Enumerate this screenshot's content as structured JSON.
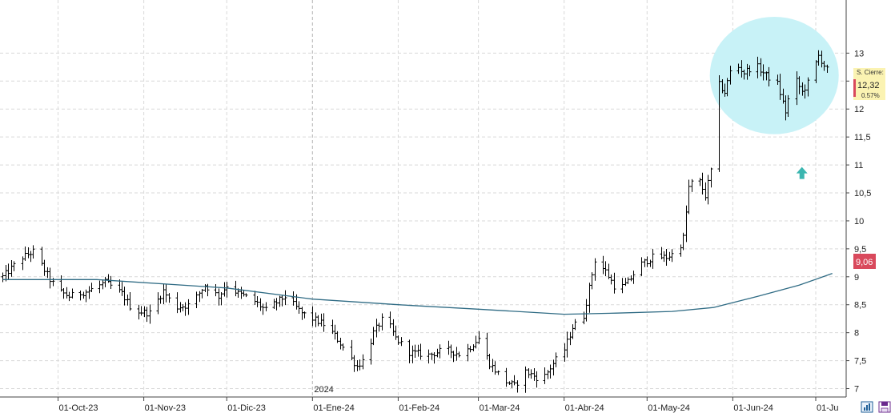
{
  "chart_data": {
    "type": "ohlc",
    "y_axis": {
      "side": "right",
      "ylim": [
        6.85,
        13.95
      ],
      "ticks": [
        "13",
        "12,5",
        "12",
        "11,5",
        "11",
        "10,5",
        "10",
        "9,5",
        "9",
        "8,5",
        "8",
        "7,5",
        "7"
      ]
    },
    "x_axis": {
      "ticks": [
        {
          "label": "01-Oct-23",
          "date": "2023-10-01"
        },
        {
          "label": "01-Nov-23",
          "date": "2023-11-01"
        },
        {
          "label": "01-Dic-23",
          "date": "2023-12-01"
        },
        {
          "label": "01-Ene-24",
          "date": "2024-01-01"
        },
        {
          "label": "01-Feb-24",
          "date": "2024-02-01"
        },
        {
          "label": "01-Mar-24",
          "date": "2024-03-01"
        },
        {
          "label": "01-Abr-24",
          "date": "2024-04-01"
        },
        {
          "label": "01-May-24",
          "date": "2024-05-01"
        },
        {
          "label": "01-Jun-24",
          "date": "2024-06-01"
        },
        {
          "label": "01-Ju",
          "date": "2024-07-01"
        }
      ],
      "year_marker": {
        "label": "2024",
        "date": "2024-01-01"
      },
      "range": [
        "2023-09-10",
        "2024-07-12"
      ]
    },
    "grid": true,
    "series": [
      {
        "kind": "ohlc-bars",
        "color": "#000000",
        "anchors": [
          [
            "2023-09-11",
            9.0
          ],
          [
            "2023-09-18",
            9.35
          ],
          [
            "2023-09-22",
            9.45
          ],
          [
            "2023-09-28",
            8.95
          ],
          [
            "2023-10-01",
            8.75
          ],
          [
            "2023-10-05",
            8.65
          ],
          [
            "2023-10-12",
            8.75
          ],
          [
            "2023-10-18",
            8.9
          ],
          [
            "2023-10-24",
            8.7
          ],
          [
            "2023-10-28",
            8.4
          ],
          [
            "2023-11-03",
            8.35
          ],
          [
            "2023-11-08",
            8.75
          ],
          [
            "2023-11-12",
            8.45
          ],
          [
            "2023-11-18",
            8.5
          ],
          [
            "2023-11-23",
            8.85
          ],
          [
            "2023-11-28",
            8.65
          ],
          [
            "2023-12-01",
            8.85
          ],
          [
            "2023-12-05",
            8.7
          ],
          [
            "2023-12-10",
            8.6
          ],
          [
            "2023-12-15",
            8.4
          ],
          [
            "2023-12-22",
            8.65
          ],
          [
            "2023-12-28",
            8.35
          ],
          [
            "2024-01-05",
            8.15
          ],
          [
            "2024-01-09",
            7.95
          ],
          [
            "2024-01-14",
            7.6
          ],
          [
            "2024-01-17",
            7.4
          ],
          [
            "2024-01-20",
            7.55
          ],
          [
            "2024-01-23",
            8.0
          ],
          [
            "2024-01-27",
            8.3
          ],
          [
            "2024-01-31",
            7.9
          ],
          [
            "2024-02-05",
            7.65
          ],
          [
            "2024-02-12",
            7.6
          ],
          [
            "2024-02-18",
            7.7
          ],
          [
            "2024-02-24",
            7.6
          ],
          [
            "2024-03-01",
            7.9
          ],
          [
            "2024-03-05",
            7.45
          ],
          [
            "2024-03-10",
            7.15
          ],
          [
            "2024-03-14",
            7.05
          ],
          [
            "2024-03-18",
            7.3
          ],
          [
            "2024-03-24",
            7.15
          ],
          [
            "2024-03-28",
            7.45
          ],
          [
            "2024-04-01",
            7.7
          ],
          [
            "2024-04-04",
            8.1
          ],
          [
            "2024-04-08",
            8.3
          ],
          [
            "2024-04-12",
            9.3
          ],
          [
            "2024-04-16",
            9.1
          ],
          [
            "2024-04-20",
            8.75
          ],
          [
            "2024-04-24",
            8.9
          ],
          [
            "2024-04-28",
            9.2
          ],
          [
            "2024-05-03",
            9.35
          ],
          [
            "2024-05-08",
            9.35
          ],
          [
            "2024-05-12",
            9.45
          ],
          [
            "2024-05-14",
            9.7
          ],
          [
            "2024-05-16",
            10.6
          ],
          [
            "2024-05-18",
            10.75
          ],
          [
            "2024-05-20",
            10.7
          ],
          [
            "2024-05-22",
            10.45
          ],
          [
            "2024-05-24",
            10.9
          ],
          [
            "2024-05-26",
            12.5
          ],
          [
            "2024-05-29",
            12.3
          ],
          [
            "2024-06-01",
            12.85
          ],
          [
            "2024-06-05",
            12.65
          ],
          [
            "2024-06-09",
            12.8
          ],
          [
            "2024-06-13",
            12.6
          ],
          [
            "2024-06-17",
            12.45
          ],
          [
            "2024-06-20",
            11.95
          ],
          [
            "2024-06-23",
            12.6
          ],
          [
            "2024-06-26",
            12.3
          ],
          [
            "2024-06-29",
            12.55
          ],
          [
            "2024-07-02",
            12.95
          ],
          [
            "2024-07-05",
            12.7
          ],
          [
            "2024-07-07",
            12.32
          ]
        ]
      },
      {
        "kind": "moving-average",
        "color": "#2f6b84",
        "points": [
          [
            "2023-09-11",
            8.95
          ],
          [
            "2023-10-15",
            8.95
          ],
          [
            "2023-12-01",
            8.8
          ],
          [
            "2024-01-01",
            8.6
          ],
          [
            "2024-02-01",
            8.5
          ],
          [
            "2024-03-01",
            8.42
          ],
          [
            "2024-04-01",
            8.33
          ],
          [
            "2024-04-20",
            8.35
          ],
          [
            "2024-05-10",
            8.38
          ],
          [
            "2024-05-25",
            8.45
          ],
          [
            "2024-06-10",
            8.65
          ],
          [
            "2024-06-25",
            8.85
          ],
          [
            "2024-07-07",
            9.06
          ]
        ]
      }
    ],
    "annotations": {
      "highlight_ellipse": {
        "color": "#c8f2f7",
        "x_range": [
          "2024-05-26",
          "2024-07-07"
        ],
        "y_range": [
          11.55,
          13.65
        ]
      },
      "arrow_up": {
        "color": "#3bb6b0",
        "date": "2024-06-26",
        "value": 10.85
      },
      "last_close_box": {
        "title": "S. Cierre:",
        "value": "12,32",
        "change": "0.57%",
        "background": "#fbf3b2",
        "marker_color": "#d9495c"
      },
      "ma_value_box": {
        "value": "9,06",
        "background": "#d9495c",
        "text_color": "#ffffff"
      }
    }
  },
  "icons": [
    {
      "name": "chart-type-icon",
      "color": "#1f5f97"
    },
    {
      "name": "save-icon",
      "color": "#6b2a8e"
    }
  ]
}
